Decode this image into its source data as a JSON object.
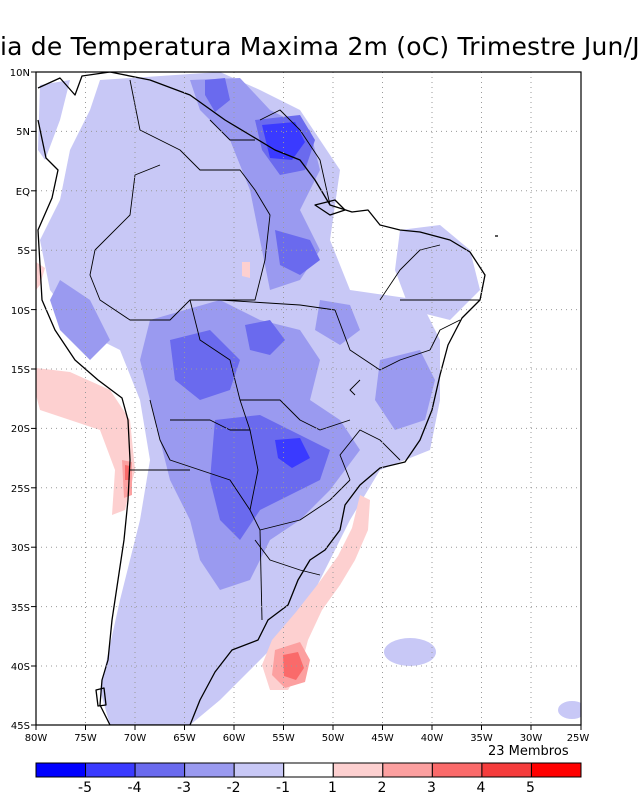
{
  "title": "ia de Temperatura Maxima 2m (oC) Trimestre Jun/J",
  "members_label": "23 Membros",
  "lat_labels": [
    "10N",
    "5N",
    "EQ",
    "5S",
    "10S",
    "15S",
    "20S",
    "25S",
    "30S",
    "35S",
    "40S",
    "45S"
  ],
  "lon_labels": [
    "80W",
    "75W",
    "70W",
    "65W",
    "60W",
    "55W",
    "50W",
    "45W",
    "40W",
    "35W",
    "30W",
    "25W"
  ],
  "colorbar": {
    "ticks": [
      "-5",
      "-4",
      "-3",
      "-2",
      "-1",
      "1",
      "2",
      "3",
      "4",
      "5"
    ],
    "colors": [
      "#0000ff",
      "#3a3aff",
      "#6a6aee",
      "#9a9af0",
      "#c8c8f6",
      "#ffffff",
      "#fdd0d0",
      "#fca0a0",
      "#fa6a6a",
      "#f53c3c",
      "#ff0000"
    ]
  }
}
